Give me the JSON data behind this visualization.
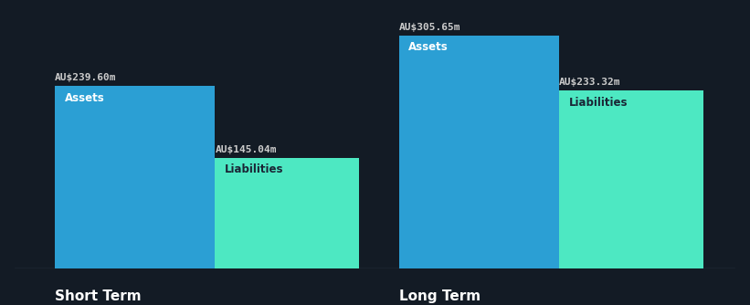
{
  "background_color": "#131b25",
  "bar_color_assets": "#2b9fd4",
  "bar_color_liabilities": "#4de8c2",
  "text_color_light": "#ffffff",
  "text_color_dark": "#1a2535",
  "value_label_color": "#cccccc",
  "groups": [
    {
      "label": "Short Term",
      "assets_value": 239.6,
      "liabilities_value": 145.04,
      "assets_label": "AU$239.60m",
      "liabilities_label": "AU$145.04m"
    },
    {
      "label": "Long Term",
      "assets_value": 305.65,
      "liabilities_value": 233.32,
      "assets_label": "AU$305.65m",
      "liabilities_label": "AU$233.32m"
    }
  ],
  "bar_inner_labels": [
    "Assets",
    "Liabilities"
  ],
  "max_value": 320,
  "group_label_fontsize": 11,
  "inner_label_fontsize": 8.5,
  "value_label_fontsize": 8,
  "baseline_color": "#3a4555"
}
